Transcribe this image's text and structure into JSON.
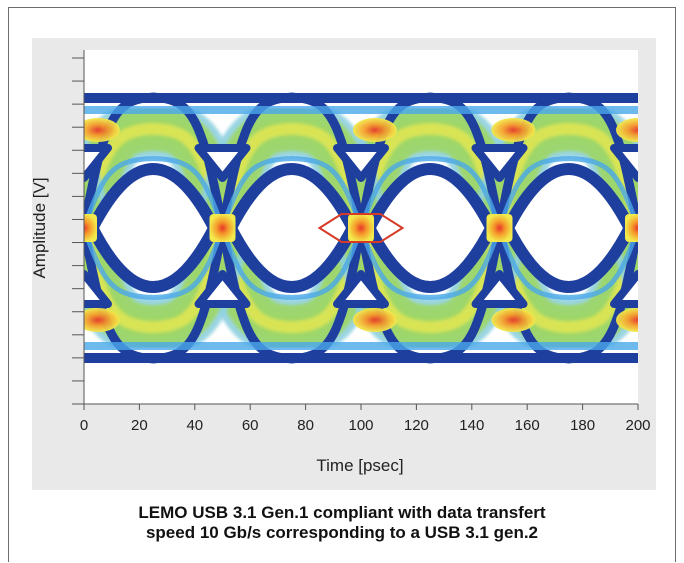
{
  "chart_data": {
    "type": "heatmap",
    "subtype": "eye-diagram",
    "xlabel": "Time [psec]",
    "ylabel": "Amplitude [V]",
    "xlim": [
      0,
      200
    ],
    "x_ticks": [
      "0",
      "20",
      "40",
      "60",
      "80",
      "100",
      "120",
      "140",
      "160",
      "180",
      "200"
    ],
    "y_tick_count": 15,
    "y_tick_labels_shown": false,
    "grid": false,
    "colormap": [
      "#1f3f9f",
      "#4aa7e8",
      "#8fd0e0",
      "#9dd66a",
      "#f2ea4c",
      "#f59a2a",
      "#e8382a"
    ],
    "eye_crossings_psec": [
      0,
      50,
      100,
      150,
      200
    ],
    "eye_mask": {
      "color": "#d83a28",
      "shape": "hexagon",
      "center_psec": 100
    }
  },
  "caption": {
    "line1": "LEMO USB 3.1 Gen.1 compliant with data transfert",
    "line2": "speed 10 Gb/s corresponding to a USB 3.1 gen.2"
  }
}
